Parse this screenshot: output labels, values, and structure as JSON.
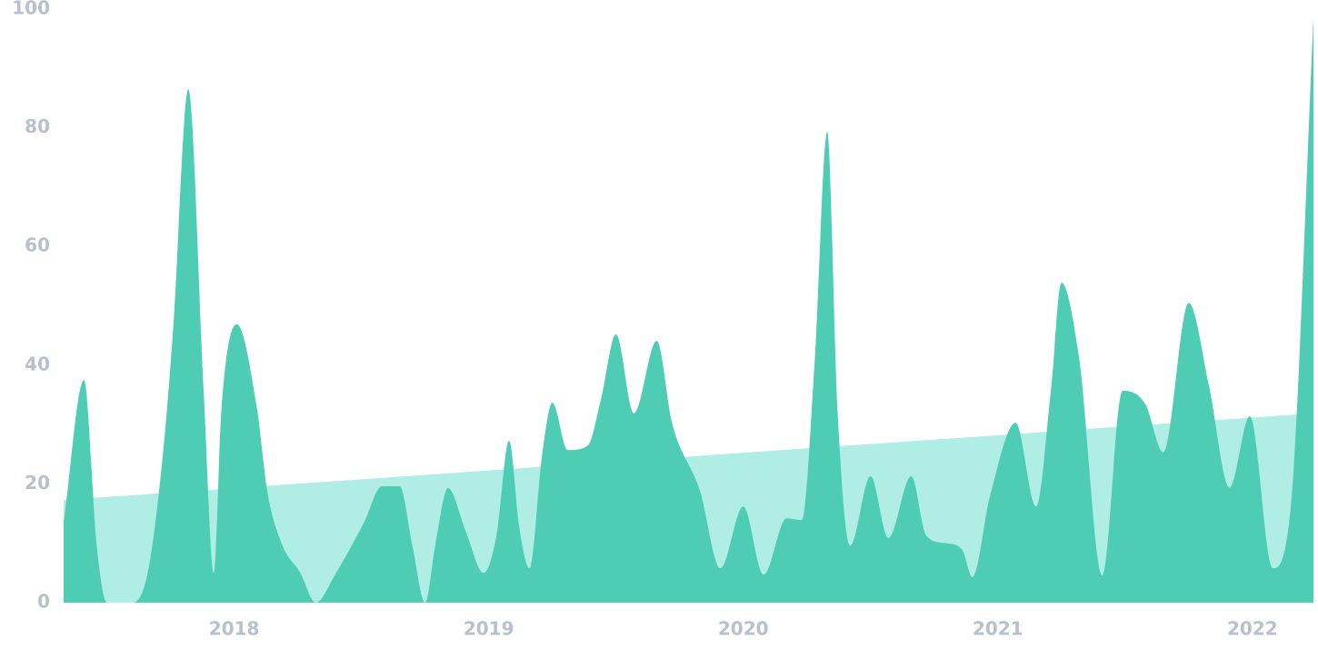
{
  "chart_data": {
    "type": "area",
    "xlim": [
      2017.33,
      2022.24
    ],
    "xticks": [
      2018,
      2019,
      2020,
      2021,
      2022
    ],
    "ylim": [
      0,
      100
    ],
    "yticks": [
      0,
      20,
      40,
      60,
      80,
      100
    ],
    "grid": false,
    "series": [
      {
        "color": "#b0ede4",
        "x": [
          2017.33,
          2022.24
        ],
        "values": [
          17.3,
          31.9
        ]
      },
      {
        "color": "#4ecdb4",
        "x": [
          2017.33,
          2017.41,
          2017.46,
          2017.5,
          2017.6,
          2017.66,
          2017.72,
          2017.76,
          2017.82,
          2017.88,
          2017.92,
          2017.95,
          2018.01,
          2018.09,
          2018.13,
          2018.19,
          2018.26,
          2018.32,
          2018.4,
          2018.51,
          2018.58,
          2018.65,
          2018.7,
          2018.75,
          2018.79,
          2018.84,
          2018.91,
          2018.98,
          2019.03,
          2019.08,
          2019.12,
          2019.16,
          2019.21,
          2019.25,
          2019.31,
          2019.39,
          2019.44,
          2019.5,
          2019.57,
          2019.66,
          2019.72,
          2019.83,
          2019.91,
          2020.0,
          2020.08,
          2020.17,
          2020.23,
          2020.28,
          2020.33,
          2020.37,
          2020.42,
          2020.5,
          2020.57,
          2020.66,
          2020.72,
          2020.8,
          2020.86,
          2020.9,
          2020.97,
          2021.07,
          2021.15,
          2021.21,
          2021.25,
          2021.32,
          2021.41,
          2021.49,
          2021.58,
          2021.65,
          2021.75,
          2021.83,
          2021.91,
          2021.99,
          2022.08,
          2022.15,
          2022.24
        ],
        "values": [
          13.5,
          37.5,
          9.6,
          0,
          0,
          5,
          25,
          46,
          86.5,
          35.7,
          5,
          32.6,
          46.9,
          32.6,
          18.8,
          9.6,
          5,
          0,
          5,
          13.5,
          19.6,
          19.6,
          9.6,
          0,
          9.6,
          19.3,
          12,
          5,
          11.2,
          27.3,
          12.7,
          5.8,
          25,
          33.7,
          25.7,
          26.5,
          34.1,
          45.2,
          31.9,
          44.1,
          30.3,
          18.8,
          5.8,
          16.2,
          4.7,
          14.2,
          13.9,
          40.3,
          79.3,
          32.6,
          9.6,
          21.3,
          10.9,
          21.3,
          11.2,
          10,
          8.9,
          4.3,
          18.1,
          30.3,
          16.2,
          36.4,
          53.9,
          41,
          4.6,
          35.7,
          33.4,
          25.3,
          50.5,
          36.4,
          19.4,
          31.4,
          5.8,
          15.8,
          98.5
        ]
      }
    ]
  }
}
